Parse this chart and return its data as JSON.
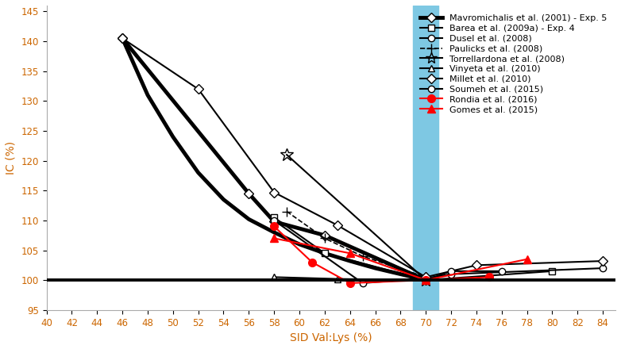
{
  "xlim": [
    40,
    85
  ],
  "ylim": [
    95,
    146
  ],
  "xticks": [
    40,
    42,
    44,
    46,
    48,
    50,
    52,
    54,
    56,
    58,
    60,
    62,
    64,
    66,
    68,
    70,
    72,
    74,
    76,
    78,
    80,
    82,
    84
  ],
  "yticks": [
    95,
    100,
    105,
    110,
    115,
    120,
    125,
    130,
    135,
    140,
    145
  ],
  "xlabel": "SID Val:Lys (%)",
  "ylabel": "IC (%)",
  "highlight_x_start": 69,
  "highlight_x_end": 71,
  "highlight_color": "#7ec8e3",
  "baseline_y": 100,
  "series": [
    {
      "label": "Mavromichalis et al. (2001) - Exp. 5",
      "color": "black",
      "linewidth": 3.5,
      "linestyle": "-",
      "marker": "D",
      "markersize": 6,
      "markerfacecolor": "white",
      "markeredgecolor": "black",
      "x": [
        46,
        56,
        58,
        62,
        70
      ],
      "y": [
        140.5,
        114.5,
        109.8,
        107.5,
        100.0
      ]
    },
    {
      "label": "Barea et al. (2009a) - Exp. 4",
      "color": "black",
      "linewidth": 1.5,
      "linestyle": "-",
      "marker": "s",
      "markersize": 6,
      "markerfacecolor": "white",
      "markeredgecolor": "black",
      "x": [
        58,
        62,
        70,
        80
      ],
      "y": [
        110.5,
        104.5,
        100.0,
        101.5
      ]
    },
    {
      "label": "Dusel et al. (2008)",
      "color": "black",
      "linewidth": 1.5,
      "linestyle": "-",
      "marker": "o",
      "markersize": 6,
      "markerfacecolor": "white",
      "markeredgecolor": "black",
      "x": [
        58,
        65,
        70,
        72,
        84
      ],
      "y": [
        110.0,
        99.5,
        100.3,
        101.0,
        102.0
      ]
    },
    {
      "label": "Paulicks et al. (2008)",
      "color": "black",
      "linewidth": 1.2,
      "linestyle": "--",
      "marker": "+",
      "markersize": 8,
      "markerfacecolor": "black",
      "markeredgecolor": "black",
      "x": [
        59,
        62,
        65,
        70
      ],
      "y": [
        111.5,
        107.0,
        104.0,
        100.5
      ]
    },
    {
      "label": "Torrellardona et al. (2008)",
      "color": "black",
      "linewidth": 1.5,
      "linestyle": "-",
      "marker": "*",
      "markersize": 12,
      "markerfacecolor": "none",
      "markeredgecolor": "black",
      "x": [
        59,
        70
      ],
      "y": [
        121.0,
        100.0
      ]
    },
    {
      "label": "Vinyeta et al. (2010)",
      "color": "black",
      "linewidth": 1.5,
      "linestyle": "-",
      "marker": "^",
      "markersize": 6,
      "markerfacecolor": "white",
      "markeredgecolor": "black",
      "x": [
        58,
        63,
        70
      ],
      "y": [
        100.5,
        100.2,
        100.0
      ]
    },
    {
      "label": "Millet et al. (2010)",
      "color": "black",
      "linewidth": 1.5,
      "linestyle": "-",
      "marker": "D",
      "markersize": 6,
      "markerfacecolor": "white",
      "markeredgecolor": "black",
      "x": [
        46,
        52,
        58,
        63,
        70,
        74,
        84
      ],
      "y": [
        140.5,
        132.0,
        114.7,
        109.2,
        100.5,
        102.5,
        103.2
      ]
    },
    {
      "label": "Soumeh et al. (2015)",
      "color": "black",
      "linewidth": 1.5,
      "linestyle": "-",
      "marker": "o",
      "markersize": 6,
      "markerfacecolor": "white",
      "markeredgecolor": "black",
      "x": [
        70,
        72,
        76
      ],
      "y": [
        100.0,
        101.5,
        101.5
      ]
    },
    {
      "label": "Rondia et al. (2016)",
      "color": "#ff0000",
      "linewidth": 1.5,
      "linestyle": "-",
      "marker": "o",
      "markersize": 7,
      "markerfacecolor": "#ff0000",
      "markeredgecolor": "#ff0000",
      "x": [
        58,
        61,
        64,
        70,
        75
      ],
      "y": [
        109.0,
        103.0,
        99.5,
        100.0,
        100.5
      ]
    },
    {
      "label": "Gomes et al. (2015)",
      "color": "#ff0000",
      "linewidth": 1.5,
      "linestyle": "-",
      "marker": "^",
      "markersize": 7,
      "markerfacecolor": "#ff0000",
      "markeredgecolor": "#ff0000",
      "x": [
        58,
        64,
        70,
        78
      ],
      "y": [
        107.0,
        104.5,
        100.0,
        103.5
      ]
    }
  ],
  "smooth_curve": {
    "color": "black",
    "linewidth": 3.5,
    "x": [
      46,
      48,
      50,
      52,
      54,
      56,
      58,
      60,
      62,
      64,
      66,
      68,
      70
    ],
    "y": [
      140.5,
      131.0,
      124.0,
      118.0,
      113.5,
      110.2,
      108.0,
      106.0,
      104.5,
      103.2,
      102.0,
      101.0,
      100.0
    ]
  },
  "legend_fontsize": 8,
  "axis_label_fontsize": 10,
  "tick_fontsize": 8.5,
  "tick_color": "#cc6600",
  "label_color": "#cc6600",
  "background_color": "#ffffff"
}
